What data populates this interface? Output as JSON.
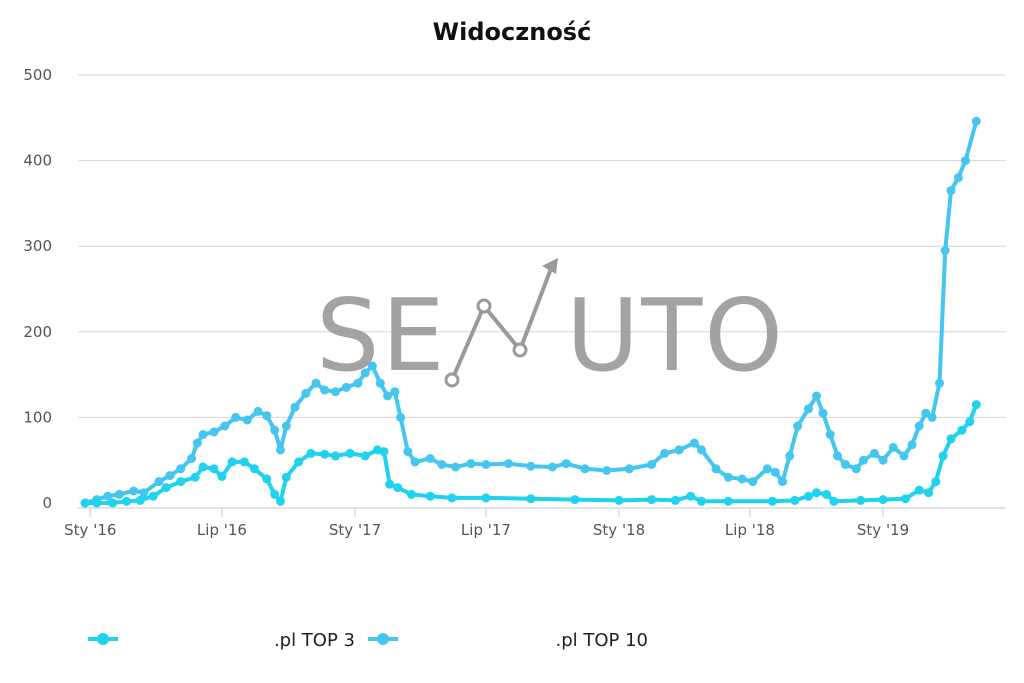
{
  "chart_data": {
    "type": "line",
    "title": "Widoczność",
    "ylim": [
      0,
      500
    ],
    "yticks": [
      0,
      100,
      200,
      300,
      400,
      500
    ],
    "x_range": [
      "2015-12-15",
      "2019-06-20"
    ],
    "xticks": [
      {
        "date": "2016-01-01",
        "label": "Sty '16"
      },
      {
        "date": "2016-07-01",
        "label": "Lip '16"
      },
      {
        "date": "2017-01-01",
        "label": "Sty '17"
      },
      {
        "date": "2017-07-01",
        "label": "Lip '17"
      },
      {
        "date": "2018-01-01",
        "label": "Sty '18"
      },
      {
        "date": "2018-07-01",
        "label": "Lip '18"
      },
      {
        "date": "2019-01-01",
        "label": "Sty '19"
      }
    ],
    "grid": true,
    "legend_position": "bottom",
    "watermark": "SENUTO",
    "series": [
      {
        "name": ".pl TOP 3",
        "color": "#1fd3ee",
        "points": [
          [
            "2015-12-25",
            0
          ],
          [
            "2016-01-10",
            0
          ],
          [
            "2016-02-01",
            0
          ],
          [
            "2016-02-20",
            2
          ],
          [
            "2016-03-10",
            3
          ],
          [
            "2016-03-28",
            8
          ],
          [
            "2016-04-15",
            18
          ],
          [
            "2016-05-05",
            25
          ],
          [
            "2016-05-25",
            30
          ],
          [
            "2016-06-05",
            42
          ],
          [
            "2016-06-20",
            40
          ],
          [
            "2016-07-01",
            31
          ],
          [
            "2016-07-15",
            48
          ],
          [
            "2016-08-01",
            48
          ],
          [
            "2016-08-15",
            40
          ],
          [
            "2016-09-01",
            28
          ],
          [
            "2016-09-12",
            10
          ],
          [
            "2016-09-20",
            2
          ],
          [
            "2016-09-28",
            30
          ],
          [
            "2016-10-15",
            48
          ],
          [
            "2016-11-01",
            58
          ],
          [
            "2016-11-20",
            57
          ],
          [
            "2016-12-05",
            55
          ],
          [
            "2016-12-25",
            58
          ],
          [
            "2017-01-15",
            55
          ],
          [
            "2017-02-01",
            62
          ],
          [
            "2017-02-10",
            60
          ],
          [
            "2017-02-18",
            22
          ],
          [
            "2017-03-01",
            18
          ],
          [
            "2017-03-20",
            10
          ],
          [
            "2017-04-15",
            8
          ],
          [
            "2017-05-15",
            6
          ],
          [
            "2017-07-01",
            6
          ],
          [
            "2017-09-01",
            5
          ],
          [
            "2017-11-01",
            4
          ],
          [
            "2018-01-01",
            3
          ],
          [
            "2018-02-15",
            4
          ],
          [
            "2018-03-20",
            3
          ],
          [
            "2018-04-10",
            8
          ],
          [
            "2018-04-25",
            2
          ],
          [
            "2018-06-01",
            2
          ],
          [
            "2018-08-01",
            2
          ],
          [
            "2018-09-01",
            3
          ],
          [
            "2018-09-20",
            8
          ],
          [
            "2018-10-01",
            12
          ],
          [
            "2018-10-15",
            10
          ],
          [
            "2018-10-25",
            2
          ],
          [
            "2018-12-01",
            3
          ],
          [
            "2019-01-01",
            4
          ],
          [
            "2019-02-01",
            5
          ],
          [
            "2019-02-20",
            15
          ],
          [
            "2019-03-05",
            12
          ],
          [
            "2019-03-15",
            25
          ],
          [
            "2019-03-25",
            55
          ],
          [
            "2019-04-05",
            75
          ],
          [
            "2019-04-20",
            85
          ],
          [
            "2019-05-01",
            95
          ],
          [
            "2019-05-10",
            115
          ]
        ]
      },
      {
        "name": ".pl TOP 10",
        "color": "#45c6ee",
        "points": [
          [
            "2015-12-25",
            0
          ],
          [
            "2016-01-10",
            4
          ],
          [
            "2016-01-25",
            8
          ],
          [
            "2016-02-10",
            10
          ],
          [
            "2016-03-01",
            14
          ],
          [
            "2016-03-15",
            12
          ],
          [
            "2016-04-05",
            25
          ],
          [
            "2016-04-20",
            32
          ],
          [
            "2016-05-05",
            40
          ],
          [
            "2016-05-20",
            52
          ],
          [
            "2016-05-28",
            70
          ],
          [
            "2016-06-05",
            80
          ],
          [
            "2016-06-20",
            83
          ],
          [
            "2016-07-05",
            90
          ],
          [
            "2016-07-20",
            100
          ],
          [
            "2016-08-05",
            97
          ],
          [
            "2016-08-20",
            107
          ],
          [
            "2016-09-01",
            102
          ],
          [
            "2016-09-12",
            85
          ],
          [
            "2016-09-20",
            62
          ],
          [
            "2016-09-28",
            90
          ],
          [
            "2016-10-10",
            112
          ],
          [
            "2016-10-25",
            128
          ],
          [
            "2016-11-08",
            140
          ],
          [
            "2016-11-20",
            132
          ],
          [
            "2016-12-05",
            130
          ],
          [
            "2016-12-20",
            135
          ],
          [
            "2017-01-05",
            140
          ],
          [
            "2017-01-15",
            152
          ],
          [
            "2017-01-25",
            160
          ],
          [
            "2017-02-05",
            140
          ],
          [
            "2017-02-15",
            125
          ],
          [
            "2017-02-25",
            130
          ],
          [
            "2017-03-05",
            100
          ],
          [
            "2017-03-15",
            60
          ],
          [
            "2017-03-25",
            48
          ],
          [
            "2017-04-15",
            52
          ],
          [
            "2017-05-01",
            45
          ],
          [
            "2017-05-20",
            42
          ],
          [
            "2017-06-10",
            46
          ],
          [
            "2017-07-01",
            45
          ],
          [
            "2017-08-01",
            46
          ],
          [
            "2017-09-01",
            43
          ],
          [
            "2017-10-01",
            42
          ],
          [
            "2017-10-20",
            46
          ],
          [
            "2017-11-15",
            40
          ],
          [
            "2017-12-15",
            38
          ],
          [
            "2018-01-15",
            40
          ],
          [
            "2018-02-15",
            45
          ],
          [
            "2018-03-05",
            58
          ],
          [
            "2018-03-25",
            62
          ],
          [
            "2018-04-15",
            70
          ],
          [
            "2018-04-25",
            62
          ],
          [
            "2018-05-15",
            40
          ],
          [
            "2018-06-01",
            30
          ],
          [
            "2018-06-20",
            28
          ],
          [
            "2018-07-05",
            25
          ],
          [
            "2018-07-25",
            40
          ],
          [
            "2018-08-05",
            36
          ],
          [
            "2018-08-15",
            25
          ],
          [
            "2018-08-25",
            55
          ],
          [
            "2018-09-05",
            90
          ],
          [
            "2018-09-20",
            110
          ],
          [
            "2018-10-01",
            125
          ],
          [
            "2018-10-10",
            105
          ],
          [
            "2018-10-20",
            80
          ],
          [
            "2018-10-30",
            55
          ],
          [
            "2018-11-10",
            45
          ],
          [
            "2018-11-25",
            40
          ],
          [
            "2018-12-05",
            50
          ],
          [
            "2018-12-20",
            58
          ],
          [
            "2019-01-01",
            50
          ],
          [
            "2019-01-15",
            65
          ],
          [
            "2019-01-30",
            55
          ],
          [
            "2019-02-10",
            68
          ],
          [
            "2019-02-20",
            90
          ],
          [
            "2019-03-01",
            105
          ],
          [
            "2019-03-10",
            100
          ],
          [
            "2019-03-20",
            140
          ],
          [
            "2019-03-28",
            295
          ],
          [
            "2019-04-05",
            365
          ],
          [
            "2019-04-15",
            380
          ],
          [
            "2019-04-25",
            400
          ],
          [
            "2019-05-10",
            446
          ]
        ]
      }
    ]
  }
}
